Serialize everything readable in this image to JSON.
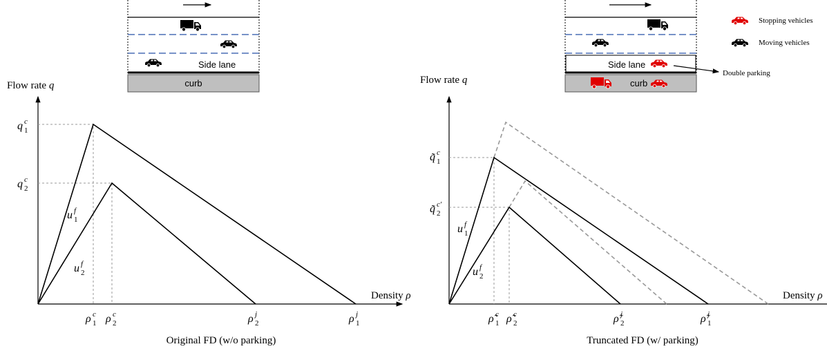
{
  "left": {
    "y_axis_label": {
      "text": "Flow rate",
      "symbol": "q"
    },
    "x_axis_label": {
      "text": "Density",
      "symbol": "ρ"
    },
    "road": {
      "side_lane": "Side lane",
      "curb": "curb"
    },
    "labels": [
      {
        "base": "q",
        "sub": "1",
        "sup": "c"
      },
      {
        "base": "q",
        "sub": "2",
        "sup": "c"
      },
      {
        "base": "u",
        "sub": "1",
        "sup": "f"
      },
      {
        "base": "u",
        "sub": "2",
        "sup": "f"
      },
      {
        "base": "ρ",
        "sub": "1",
        "sup": "c"
      },
      {
        "base": "ρ",
        "sub": "2",
        "sup": "c"
      },
      {
        "base": "ρ",
        "sub": "2",
        "sup": "j"
      },
      {
        "base": "ρ",
        "sub": "1",
        "sup": "j"
      }
    ],
    "caption": "Original FD (w/o parking)"
  },
  "right": {
    "y_axis_label": {
      "text": "Flow rate",
      "symbol": "q"
    },
    "x_axis_label": {
      "text": "Density",
      "symbol": "ρ"
    },
    "road": {
      "side_lane": "Side lane",
      "curb": "curb"
    },
    "legend": {
      "stopping": "Stopping vehicles",
      "moving": "Moving vehicles"
    },
    "annotation": "Double parking",
    "labels": [
      {
        "base": "q̃",
        "sub": "1",
        "sup": "c"
      },
      {
        "base": "q̃",
        "sub": "2",
        "sup": "c′"
      },
      {
        "base": "u",
        "sub": "1",
        "sup": "f"
      },
      {
        "base": "u",
        "sub": "2",
        "sup": "f"
      },
      {
        "base": "ρ̃",
        "sub": "1",
        "sup": "c"
      },
      {
        "base": "ρ̃",
        "sub": "2",
        "sup": "c"
      },
      {
        "base": "ρ̃",
        "sub": "2",
        "sup": "j"
      },
      {
        "base": "ρ̃",
        "sub": "1",
        "sup": "j"
      }
    ],
    "caption": "Truncated FD (w/ parking)"
  }
}
